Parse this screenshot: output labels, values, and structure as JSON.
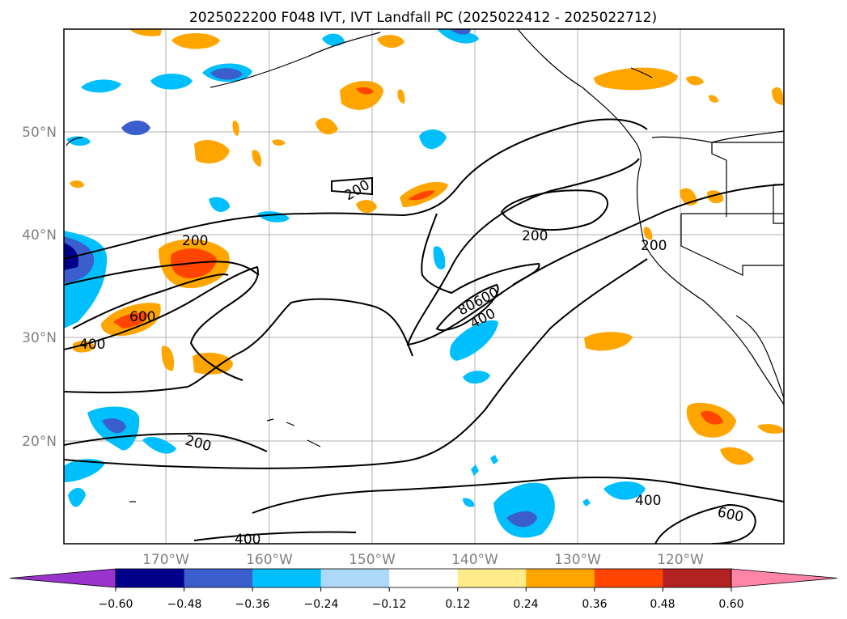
{
  "title": "2025022200 F048 IVT, IVT Landfall PC (2025022412 - 2025022712)",
  "lat_labels": [
    "50°N",
    "40°N",
    "30°N",
    "20°N"
  ],
  "lon_labels": [
    "170°W",
    "160°W",
    "150°W",
    "140°W",
    "130°W",
    "120°W"
  ],
  "colorbar": {
    "colors": [
      "#9933cc",
      "#00008b",
      "#3a5ecc",
      "#00bfff",
      "#add8f7",
      "#ffffff",
      "#ffeb8a",
      "#ffa500",
      "#ff4500",
      "#b22222",
      "#ff85a8"
    ],
    "tick_labels": [
      "−0.60",
      "−0.48",
      "−0.36",
      "−0.24",
      "−0.12",
      "0.12",
      "0.24",
      "0.36",
      "0.48",
      "0.60"
    ]
  },
  "contour_labels": [
    "200",
    "200",
    "200",
    "200",
    "600",
    "400",
    "80600",
    "400",
    "200",
    "400",
    "400",
    "600"
  ]
}
